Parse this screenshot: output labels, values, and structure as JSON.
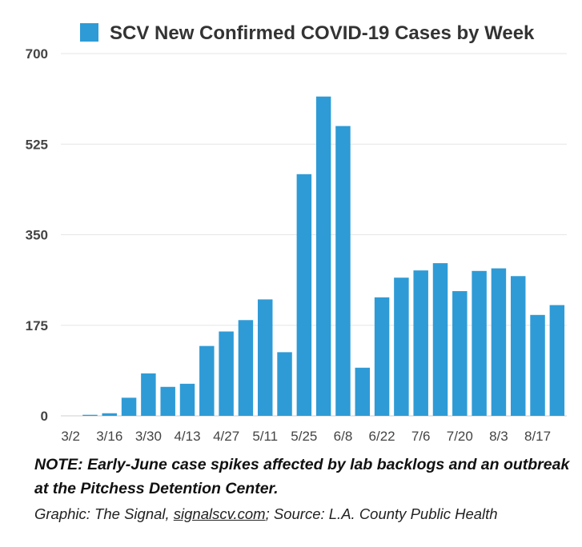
{
  "chart_data": {
    "type": "bar",
    "title": "",
    "xlabel": "",
    "ylabel": "",
    "legend": {
      "position": "top",
      "entries": [
        "SCV New Confirmed COVID-19 Cases by Week"
      ]
    },
    "colors": {
      "bar": "#2e9bd6",
      "grid": "#e6e6e6",
      "axis": "#cfcfcf"
    },
    "grid": true,
    "ylim": [
      0,
      700
    ],
    "yticks": [
      "0",
      "175",
      "350",
      "525",
      "700"
    ],
    "xtick_labels": [
      "3/2",
      "3/16",
      "3/30",
      "4/13",
      "4/27",
      "5/11",
      "5/25",
      "6/8",
      "6/22",
      "7/6",
      "7/20",
      "8/3",
      "8/17"
    ],
    "categories": [
      "3/2",
      "3/9",
      "3/16",
      "3/23",
      "3/30",
      "4/6",
      "4/13",
      "4/20",
      "4/27",
      "5/4",
      "5/11",
      "5/18",
      "5/25",
      "6/1",
      "6/8",
      "6/15",
      "6/22",
      "6/29",
      "7/6",
      "7/13",
      "7/20",
      "7/27",
      "8/3",
      "8/10",
      "8/17",
      "8/24"
    ],
    "series": [
      {
        "name": "SCV New Confirmed COVID-19 Cases by Week",
        "values": [
          0,
          2,
          5,
          35,
          82,
          56,
          62,
          135,
          163,
          185,
          225,
          123,
          467,
          617,
          560,
          93,
          229,
          267,
          281,
          295,
          241,
          280,
          285,
          270,
          195,
          214
        ]
      }
    ]
  },
  "footer": {
    "note": "NOTE: Early-June case spikes affected by lab backlogs and an outbreak at the Pitchess Detention Center.",
    "credit_prefix": "Graphic: The Signal, ",
    "credit_link": "signalscv.com",
    "credit_suffix": "; Source: L.A. County Public Health"
  }
}
